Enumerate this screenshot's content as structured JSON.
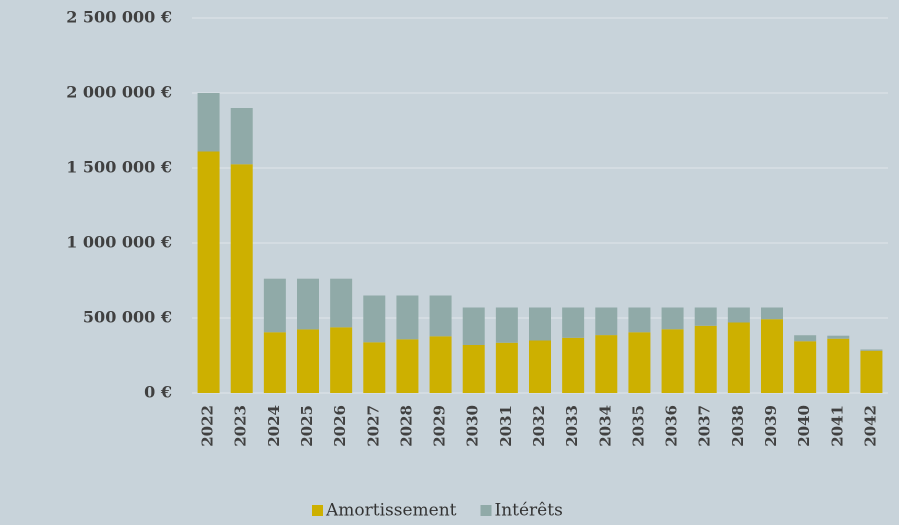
{
  "chart_data": {
    "type": "stacked_bar",
    "categories": [
      "2022",
      "2023",
      "2024",
      "2025",
      "2026",
      "2027",
      "2028",
      "2029",
      "2030",
      "2031",
      "2032",
      "2033",
      "2034",
      "2035",
      "2036",
      "2037",
      "2038",
      "2039",
      "2040",
      "2041",
      "2042"
    ],
    "series": [
      {
        "name": "Amortissement",
        "color": "#cdb000",
        "values": [
          1610000,
          1525000,
          405000,
          424000,
          438000,
          338000,
          358000,
          378000,
          320000,
          335000,
          350000,
          368000,
          386000,
          405000,
          425000,
          448000,
          470000,
          492000,
          345000,
          362000,
          282000
        ]
      },
      {
        "name": "Intérêts",
        "color": "#90aaa8",
        "values": [
          390000,
          375000,
          357000,
          338000,
          324000,
          312000,
          292000,
          272000,
          250000,
          235000,
          220000,
          202000,
          184000,
          165000,
          145000,
          122000,
          100000,
          78000,
          40000,
          20000,
          8000
        ]
      }
    ],
    "ylim": [
      0,
      2500000
    ],
    "yticks": [
      {
        "value": 0,
        "label": "0 €"
      },
      {
        "value": 500000,
        "label": "500 000 €"
      },
      {
        "value": 1000000,
        "label": "1 000 000 €"
      },
      {
        "value": 1500000,
        "label": "1 500 000 €"
      },
      {
        "value": 2000000,
        "label": "2 000 000 €"
      },
      {
        "value": 2500000,
        "label": "2 500 000 €"
      }
    ],
    "grid": true
  }
}
